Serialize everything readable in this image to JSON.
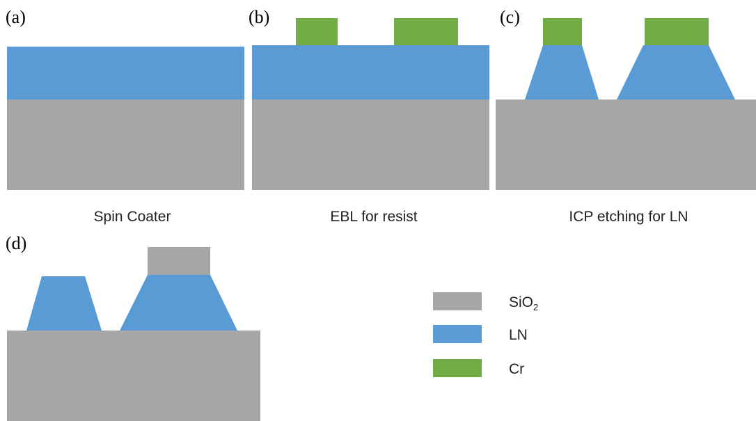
{
  "colors": {
    "SiO2": "#a6a6a6",
    "LN": "#5b9bd5",
    "Cr": "#70ad47",
    "background": "#ffffff"
  },
  "panels": {
    "a": {
      "label": "(a)",
      "caption": "Spin Coater"
    },
    "b": {
      "label": "(b)",
      "caption": "EBL for resist"
    },
    "c": {
      "label": "(c)",
      "caption": "ICP etching for LN"
    },
    "d": {
      "label": "(d)"
    }
  },
  "legend": {
    "items": [
      {
        "material": "SiO2",
        "label": "SiO",
        "subscript": "2"
      },
      {
        "material": "LN",
        "label": "LN"
      },
      {
        "material": "Cr",
        "label": "Cr"
      }
    ]
  }
}
